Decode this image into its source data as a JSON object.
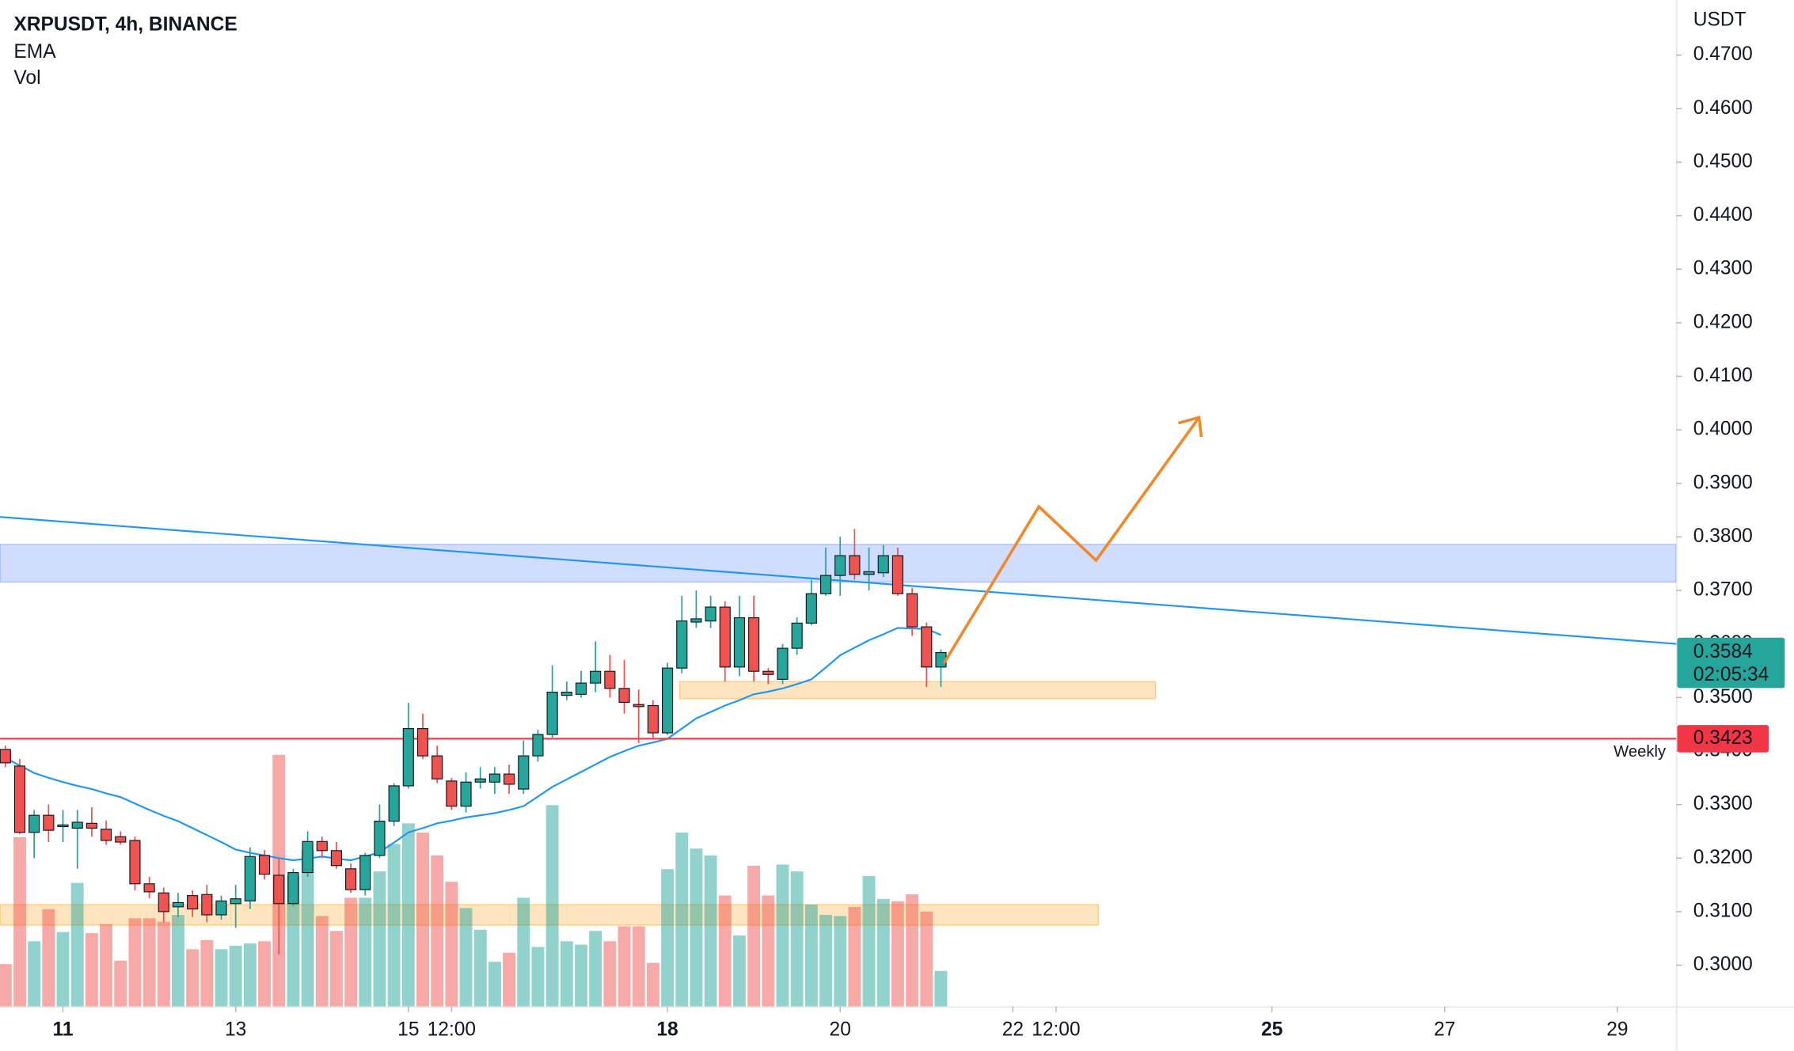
{
  "chart_data": {
    "type": "candlestick",
    "title": "XRPUSDT, 4h, BINANCE",
    "y_axis_label": "USDT",
    "up_color": "#26a69a",
    "down_color": "#ef5350",
    "open": [
      0.3403,
      0.3372,
      0.3248,
      0.328,
      0.326,
      0.3256,
      0.3265,
      0.3254,
      0.324,
      0.3233,
      0.3152,
      0.3135,
      0.3109,
      0.313,
      0.3132,
      0.3094,
      0.3115,
      0.312,
      0.3205,
      0.3168,
      0.3115,
      0.3173,
      0.3231,
      0.3214,
      0.318,
      0.3141,
      0.3205,
      0.3269,
      0.3335,
      0.3442,
      0.3391,
      0.3344,
      0.3297,
      0.3342,
      0.3342,
      0.3357,
      0.3329,
      0.3391,
      0.3431,
      0.3504,
      0.3506,
      0.3527,
      0.3549,
      0.3517,
      0.3487,
      0.3485,
      0.3434,
      0.3555,
      0.3641,
      0.3643,
      0.3669,
      0.3557,
      0.3649,
      0.3549,
      0.3534,
      0.3592,
      0.3639,
      0.3694,
      0.3728,
      0.3765,
      0.373,
      0.3733,
      0.3765,
      0.3694,
      0.3632,
      0.3557
    ],
    "high": [
      0.341,
      0.3385,
      0.329,
      0.33,
      0.329,
      0.329,
      0.3295,
      0.327,
      0.325,
      0.324,
      0.3165,
      0.3145,
      0.3135,
      0.314,
      0.315,
      0.313,
      0.315,
      0.322,
      0.3215,
      0.32,
      0.318,
      0.325,
      0.324,
      0.323,
      0.319,
      0.321,
      0.33,
      0.334,
      0.349,
      0.347,
      0.341,
      0.335,
      0.336,
      0.337,
      0.337,
      0.3375,
      0.342,
      0.344,
      0.356,
      0.353,
      0.355,
      0.3605,
      0.358,
      0.357,
      0.3515,
      0.3495,
      0.3565,
      0.369,
      0.37,
      0.369,
      0.368,
      0.369,
      0.369,
      0.3555,
      0.36,
      0.365,
      0.372,
      0.378,
      0.38,
      0.3815,
      0.378,
      0.3785,
      0.378,
      0.3705,
      0.364,
      0.359
    ],
    "low": [
      0.337,
      0.3245,
      0.32,
      0.323,
      0.323,
      0.318,
      0.324,
      0.3225,
      0.3225,
      0.314,
      0.3125,
      0.308,
      0.309,
      0.309,
      0.308,
      0.3085,
      0.307,
      0.3105,
      0.316,
      0.302,
      0.311,
      0.3165,
      0.32,
      0.318,
      0.3135,
      0.313,
      0.32,
      0.326,
      0.333,
      0.3385,
      0.334,
      0.329,
      0.3285,
      0.333,
      0.332,
      0.332,
      0.332,
      0.338,
      0.3425,
      0.3495,
      0.35,
      0.351,
      0.35,
      0.347,
      0.3415,
      0.3425,
      0.343,
      0.3545,
      0.363,
      0.363,
      0.353,
      0.354,
      0.353,
      0.3525,
      0.3525,
      0.358,
      0.3635,
      0.369,
      0.369,
      0.372,
      0.37,
      0.3725,
      0.369,
      0.3615,
      0.352,
      0.352
    ],
    "close": [
      0.3378,
      0.3248,
      0.328,
      0.3252,
      0.3262,
      0.3267,
      0.3256,
      0.3233,
      0.323,
      0.3152,
      0.3137,
      0.31,
      0.3117,
      0.3105,
      0.3094,
      0.312,
      0.3124,
      0.3203,
      0.317,
      0.3115,
      0.3173,
      0.3231,
      0.3214,
      0.3186,
      0.3141,
      0.3205,
      0.3269,
      0.3335,
      0.3442,
      0.3391,
      0.3348,
      0.3297,
      0.3342,
      0.3348,
      0.3357,
      0.3338,
      0.3391,
      0.3431,
      0.351,
      0.351,
      0.3527,
      0.3549,
      0.3517,
      0.3491,
      0.3483,
      0.3434,
      0.3555,
      0.3643,
      0.3647,
      0.3669,
      0.3557,
      0.3649,
      0.3549,
      0.3543,
      0.3592,
      0.3639,
      0.3694,
      0.3728,
      0.3765,
      0.373,
      0.3735,
      0.3765,
      0.3694,
      0.3632,
      0.3557,
      0.3584
    ],
    "ema": {
      "name": "EMA",
      "color": "#2196f3",
      "values": [
        0.3387,
        0.3373,
        0.3359,
        0.335,
        0.3342,
        0.3335,
        0.3329,
        0.3321,
        0.3314,
        0.3302,
        0.329,
        0.3279,
        0.3269,
        0.3256,
        0.3243,
        0.323,
        0.3216,
        0.321,
        0.3205,
        0.32,
        0.3196,
        0.3199,
        0.3203,
        0.3199,
        0.3196,
        0.3203,
        0.3211,
        0.3229,
        0.3248,
        0.3256,
        0.3265,
        0.327,
        0.3276,
        0.328,
        0.3284,
        0.329,
        0.3297,
        0.3315,
        0.3333,
        0.3347,
        0.3361,
        0.3375,
        0.3389,
        0.34,
        0.341,
        0.3416,
        0.3423,
        0.3442,
        0.3461,
        0.3473,
        0.3485,
        0.3495,
        0.3506,
        0.3511,
        0.3517,
        0.3525,
        0.3534,
        0.3556,
        0.3579,
        0.3593,
        0.3607,
        0.3618,
        0.363,
        0.3629,
        0.3628,
        0.3617
      ]
    },
    "volume": {
      "name": "Vol",
      "vlim": [
        0,
        250
      ],
      "values": [
        37,
        148,
        57,
        85,
        65,
        108,
        64,
        72,
        40,
        77,
        77,
        74,
        80,
        50,
        58,
        50,
        53,
        55,
        57,
        220,
        114,
        137,
        79,
        66,
        95,
        95,
        118,
        142,
        160,
        152,
        132,
        109,
        86,
        67,
        39,
        47,
        95,
        52,
        176,
        57,
        54,
        66,
        57,
        70,
        70,
        38,
        120,
        152,
        138,
        132,
        97,
        62,
        123,
        97,
        124,
        118,
        89,
        80,
        79,
        87,
        114,
        94,
        92,
        98,
        83,
        31
      ]
    },
    "countdown": "02:05:34",
    "weekly": {
      "label": "Weekly",
      "value": 0.3423,
      "color": "#f23645"
    },
    "xlim": [
      -0.37,
      116.08
    ],
    "ylim": [
      0.2923,
      0.4803
    ],
    "xticks": [
      {
        "value": 4,
        "label": "11",
        "bold": true
      },
      {
        "value": 16,
        "label": "13"
      },
      {
        "value": 28,
        "label": "15"
      },
      {
        "value": 31,
        "label": "12:00"
      },
      {
        "value": 46,
        "label": "18",
        "bold": true
      },
      {
        "value": 58,
        "label": "20"
      },
      {
        "value": 70,
        "label": "22"
      },
      {
        "value": 73,
        "label": "12:00"
      },
      {
        "value": 88,
        "label": "25",
        "bold": true
      },
      {
        "value": 100,
        "label": "27"
      },
      {
        "value": 112,
        "label": "29"
      }
    ],
    "yticks": [
      {
        "value": 0.3,
        "label": "0.3000"
      },
      {
        "value": 0.31,
        "label": "0.3100"
      },
      {
        "value": 0.32,
        "label": "0.3200"
      },
      {
        "value": 0.33,
        "label": "0.3300"
      },
      {
        "value": 0.34,
        "label": "0.3400"
      },
      {
        "value": 0.35,
        "label": "0.3500"
      },
      {
        "value": 0.36,
        "label": "0.3600"
      },
      {
        "value": 0.37,
        "label": "0.3700"
      },
      {
        "value": 0.38,
        "label": "0.3800"
      },
      {
        "value": 0.39,
        "label": "0.3900"
      },
      {
        "value": 0.4,
        "label": "0.4000"
      },
      {
        "value": 0.41,
        "label": "0.4100"
      },
      {
        "value": 0.42,
        "label": "0.4200"
      },
      {
        "value": 0.43,
        "label": "0.4300"
      },
      {
        "value": 0.44,
        "label": "0.4400"
      },
      {
        "value": 0.45,
        "label": "0.4500"
      },
      {
        "value": 0.46,
        "label": "0.4600"
      },
      {
        "value": 0.47,
        "label": "0.4700"
      }
    ]
  }
}
